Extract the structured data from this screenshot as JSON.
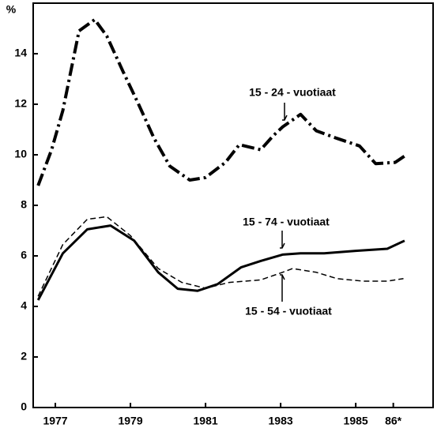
{
  "chart_data": {
    "type": "line",
    "ylabel": "%",
    "xlim": [
      1976.41,
      1987.06
    ],
    "ylim": [
      0,
      16
    ],
    "yticks": [
      0,
      2,
      4,
      6,
      8,
      10,
      12,
      14
    ],
    "xticks": [
      1977,
      1979,
      1981,
      1983,
      1985,
      {
        "value": 1986,
        "label": "86*"
      }
    ],
    "series": [
      {
        "name": "15 - 24 - vuotiaat",
        "color": "#000000",
        "style": "dashdot",
        "width": 4,
        "x": [
          1976.54,
          1976.9,
          1977.2,
          1977.63,
          1978.05,
          1978.37,
          1978.8,
          1979.2,
          1979.63,
          1980.05,
          1980.58,
          1981.0,
          1981.53,
          1981.9,
          1982.47,
          1982.8,
          1983.05,
          1983.53,
          1983.95,
          1984.5,
          1985.1,
          1985.53,
          1986.05,
          1986.3
        ],
        "values": [
          8.78,
          10.2,
          11.75,
          14.9,
          15.35,
          14.7,
          13.3,
          12.05,
          10.65,
          9.55,
          9.0,
          9.1,
          9.7,
          10.4,
          10.2,
          10.75,
          11.1,
          11.6,
          10.95,
          10.65,
          10.35,
          9.65,
          9.7,
          9.95
        ]
      },
      {
        "name": "15 - 74 - vuotiaat",
        "color": "#000000",
        "style": "solid",
        "width": 3,
        "x": [
          1976.54,
          1977.2,
          1977.85,
          1978.47,
          1979.1,
          1979.74,
          1980.26,
          1980.79,
          1981.32,
          1981.95,
          1982.47,
          1983.05,
          1983.53,
          1984.16,
          1985.0,
          1985.84,
          1986.3
        ],
        "values": [
          4.25,
          6.1,
          7.05,
          7.2,
          6.6,
          5.35,
          4.7,
          4.62,
          4.88,
          5.55,
          5.8,
          6.05,
          6.1,
          6.1,
          6.2,
          6.28,
          6.6
        ]
      },
      {
        "name": "15 - 54 - vuotiaat",
        "color": "#000000",
        "style": "dashed",
        "width": 1.5,
        "x": [
          1976.54,
          1977.2,
          1977.85,
          1978.37,
          1979.0,
          1979.74,
          1980.37,
          1981.0,
          1981.63,
          1982.47,
          1983.05,
          1983.32,
          1983.95,
          1984.5,
          1985.2,
          1985.84,
          1986.27
        ],
        "values": [
          4.4,
          6.45,
          7.45,
          7.55,
          6.8,
          5.5,
          4.95,
          4.72,
          4.95,
          5.05,
          5.35,
          5.5,
          5.35,
          5.1,
          5.0,
          5.0,
          5.1
        ]
      }
    ]
  }
}
